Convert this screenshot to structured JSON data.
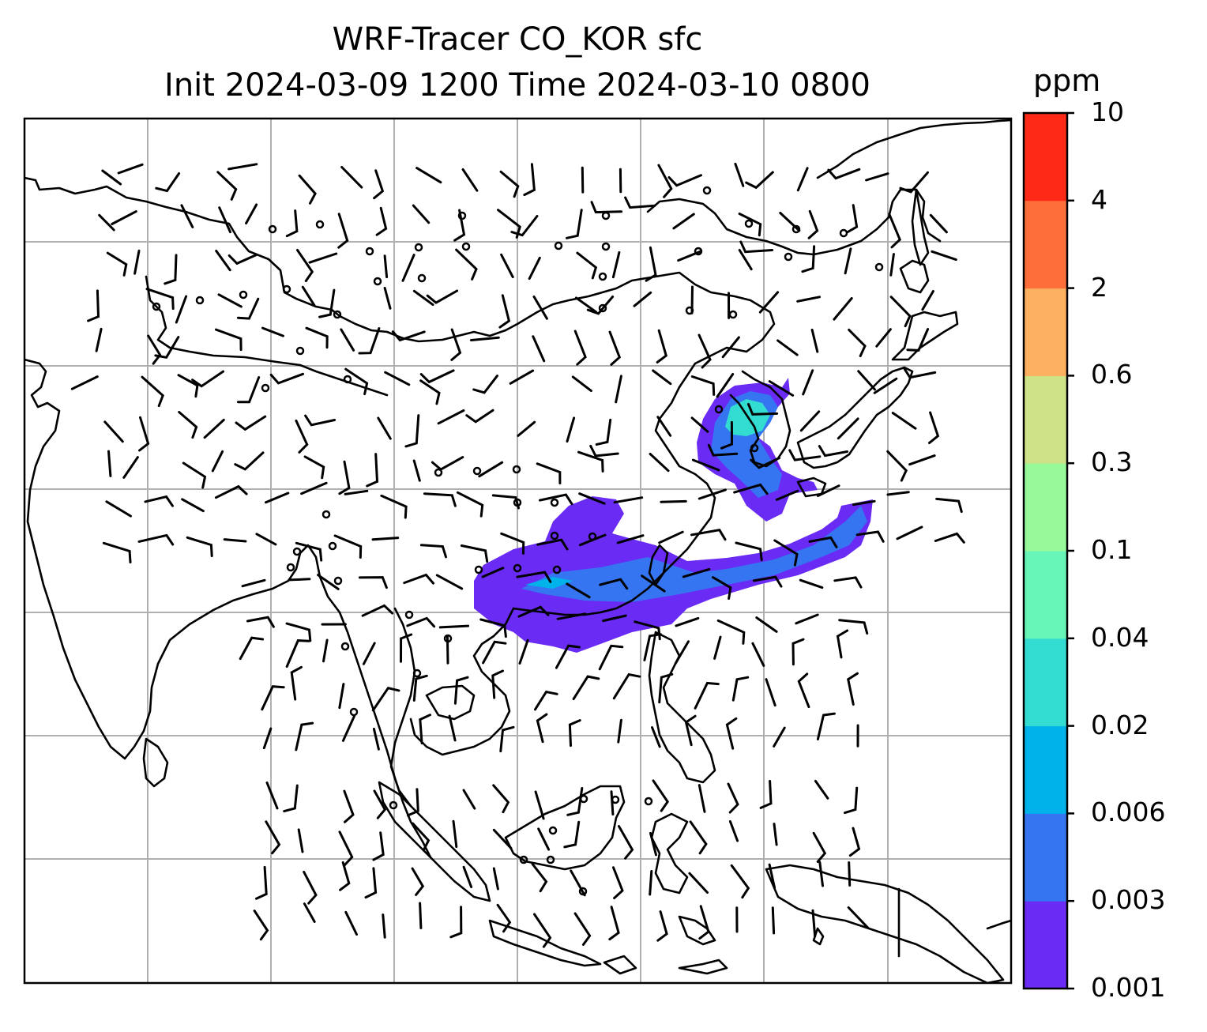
{
  "title": {
    "line1": "WRF-Tracer CO_KOR sfc",
    "line2": "Init 2024-03-09 1200 Time 2024-03-10 0800"
  },
  "colorbar": {
    "unit": "ppm",
    "levels": [
      "0.001",
      "0.003",
      "0.006",
      "0.02",
      "0.04",
      "0.1",
      "0.3",
      "0.6",
      "2",
      "4",
      "10"
    ],
    "colors": [
      "#6a2bf5",
      "#3575f1",
      "#00b2ea",
      "#33dcd1",
      "#67f6b8",
      "#98f99a",
      "#cee287",
      "#fdb060",
      "#fe6e3b",
      "#fe2a17"
    ]
  },
  "map": {
    "background": "#ffffff",
    "coastline_color": "#000000",
    "gridline_color": "#b0b0b0",
    "wind_barb_color": "#000000"
  }
}
